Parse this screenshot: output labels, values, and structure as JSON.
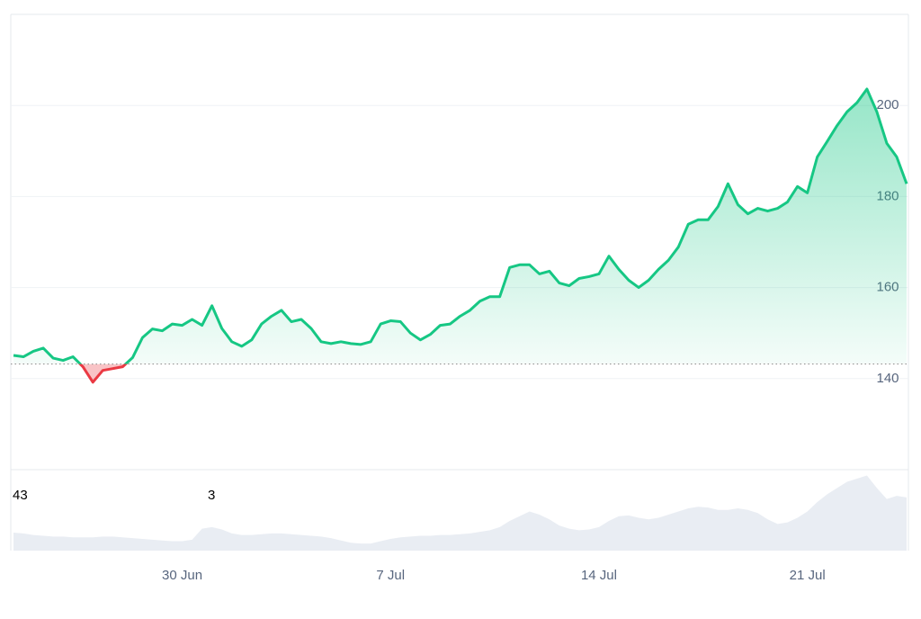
{
  "chart_data": {
    "type": "line",
    "categories": [
      null,
      null,
      null,
      null,
      null,
      null,
      null,
      null,
      null,
      null,
      null,
      null,
      null,
      null,
      null,
      null,
      null,
      "30 Jun",
      null,
      null,
      null,
      null,
      null,
      null,
      null,
      null,
      null,
      null,
      null,
      null,
      null,
      null,
      null,
      null,
      null,
      null,
      null,
      null,
      "7 Jul",
      null,
      null,
      null,
      null,
      null,
      null,
      null,
      null,
      null,
      null,
      null,
      null,
      null,
      null,
      null,
      null,
      null,
      null,
      null,
      null,
      "14 Jul",
      null,
      null,
      null,
      null,
      null,
      null,
      null,
      null,
      null,
      null,
      null,
      null,
      null,
      null,
      null,
      null,
      null,
      null,
      null,
      null,
      "21 Jul",
      null,
      null,
      null,
      null,
      null,
      null,
      null,
      null,
      null,
      null
    ],
    "values": [
      145.1,
      144.8,
      146,
      146.7,
      144.5,
      144,
      144.8,
      142.6,
      139.2,
      141.8,
      142.2,
      142.6,
      144.6,
      149,
      150.9,
      150.5,
      152,
      151.7,
      153,
      151.7,
      156,
      151,
      148.1,
      147.1,
      148.5,
      152,
      153.7,
      155,
      152.5,
      153,
      151,
      148.1,
      147.7,
      148.1,
      147.7,
      147.5,
      148.1,
      152,
      152.7,
      152.5,
      150,
      148.5,
      149.7,
      151.7,
      152,
      153.7,
      155,
      157,
      158,
      158,
      164.4,
      165,
      165,
      163,
      163.6,
      161,
      160.4,
      162,
      162.4,
      163,
      166.9,
      164,
      161.6,
      160,
      161.6,
      164,
      166,
      168.9,
      173.9,
      174.9,
      174.9,
      177.8,
      182.8,
      178.2,
      176.2,
      177.4,
      176.8,
      177.4,
      178.8,
      182.2,
      180.8,
      188.7,
      192.1,
      195.6,
      198.6,
      200.6,
      203.6,
      198.6,
      191.7,
      188.7,
      182.8
    ],
    "color": "#16c784",
    "negative_color": "#ea3943",
    "baseline": 143.2,
    "ylim": [
      120,
      220
    ],
    "yticks": [
      140,
      160,
      180,
      200
    ],
    "grid": true,
    "volume": {
      "values": [
        23,
        22,
        20,
        19,
        18,
        18,
        17,
        17,
        17,
        18,
        18,
        17,
        16,
        15,
        14,
        13,
        12,
        12,
        14,
        28,
        30,
        27,
        22,
        20,
        20,
        21,
        22,
        22,
        21,
        20,
        19,
        18,
        16,
        13,
        10,
        9,
        9,
        12,
        15,
        17,
        18,
        19,
        19,
        20,
        20,
        21,
        22,
        24,
        26,
        30,
        38,
        44,
        50,
        46,
        40,
        32,
        28,
        26,
        27,
        30,
        38,
        44,
        45,
        42,
        40,
        42,
        46,
        50,
        54,
        56,
        55,
        52,
        52,
        54,
        52,
        48,
        40,
        34,
        36,
        42,
        50,
        62,
        72,
        80,
        88,
        92,
        96,
        80,
        66,
        70,
        68
      ],
      "color": "#e9edf3",
      "y2lim": [
        0,
        100
      ]
    },
    "annotations": [
      "43",
      "3"
    ]
  }
}
